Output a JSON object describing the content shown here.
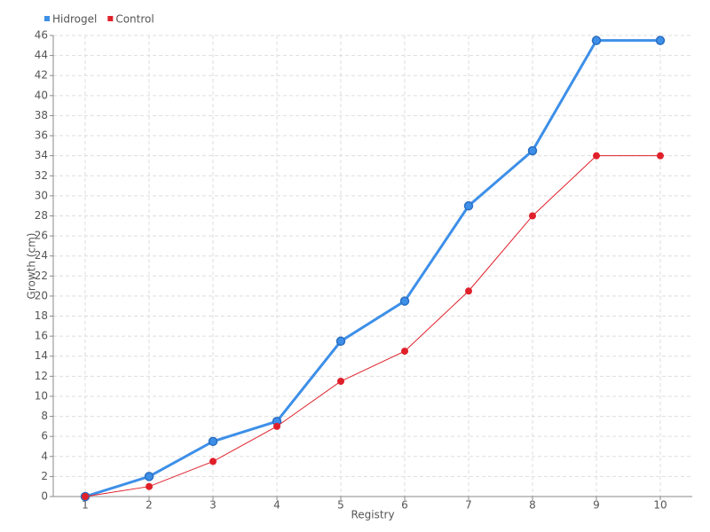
{
  "chart_data": {
    "type": "line",
    "x_label": "Registry",
    "y_label": "Growth (cm)",
    "x": [
      1,
      2,
      3,
      4,
      5,
      6,
      7,
      8,
      9,
      10
    ],
    "xlim": [
      0.5,
      10.5
    ],
    "xticks": [
      1,
      2,
      3,
      4,
      5,
      6,
      7,
      8,
      9,
      10
    ],
    "ylim": [
      0,
      46
    ],
    "yticks": [
      0,
      2,
      4,
      6,
      8,
      10,
      12,
      14,
      16,
      18,
      20,
      22,
      24,
      26,
      28,
      30,
      32,
      34,
      36,
      38,
      40,
      42,
      44,
      46
    ],
    "grid": true,
    "legend": "top-left",
    "series": [
      {
        "name": "Hidrogel",
        "color": "#3d8fe8",
        "values": [
          0,
          2,
          5.5,
          7.5,
          15.5,
          19.5,
          29,
          34.5,
          45.5,
          45.5
        ]
      },
      {
        "name": "Control",
        "color": "#e0202a",
        "values": [
          0,
          1,
          3.5,
          7,
          11.5,
          14.5,
          20.5,
          28,
          34,
          34
        ]
      }
    ]
  }
}
